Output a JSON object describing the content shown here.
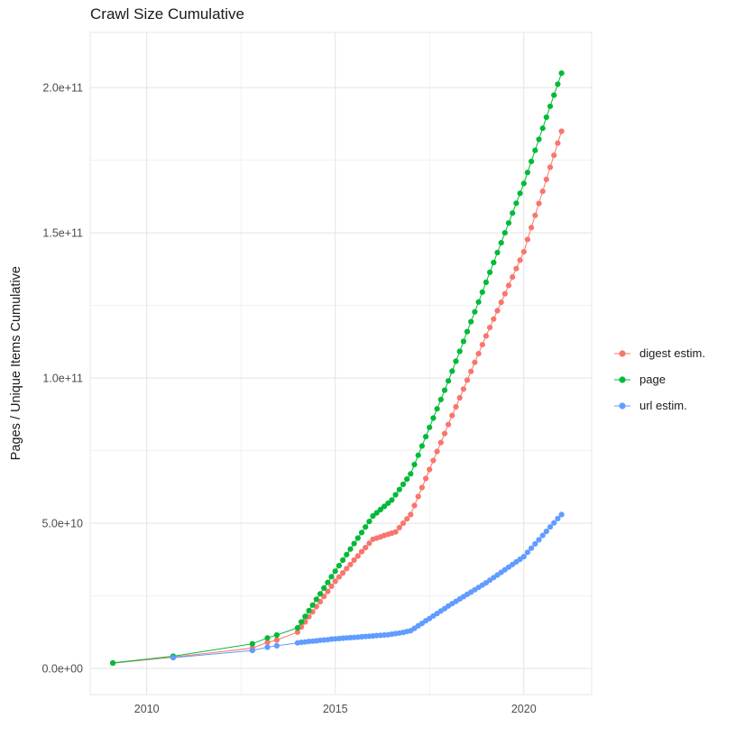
{
  "chart_data": {
    "type": "scatter",
    "title": "Crawl Size Cumulative",
    "xlabel": "",
    "ylabel": "Pages / Unique Items Cumulative",
    "legend_position": "right",
    "grid": true,
    "xlim": [
      2008.5,
      2021.8
    ],
    "ylim": [
      -9,
      219
    ],
    "y_values_scale": 1000000000,
    "x_ticks": [
      {
        "value": 2010,
        "label": "2010"
      },
      {
        "value": 2015,
        "label": "2015"
      },
      {
        "value": 2020,
        "label": "2020"
      }
    ],
    "y_ticks": [
      {
        "value": 0,
        "label": "0.0e+00"
      },
      {
        "value": 50,
        "label": "5.0e+10"
      },
      {
        "value": 100,
        "label": "1.0e+11"
      },
      {
        "value": 150,
        "label": "1.5e+11"
      },
      {
        "value": 200,
        "label": "2.0e+11"
      }
    ],
    "x_minor_ticks": [
      2012.5,
      2017.5
    ],
    "y_minor_ticks": [
      25,
      75,
      125,
      175
    ],
    "series": [
      {
        "id": "digest-estim",
        "name": "digest estim.",
        "color": "#F8766D",
        "points": [
          [
            2009.1,
            1.8
          ],
          [
            2010.7,
            3.9
          ],
          [
            2012.8,
            7.0
          ],
          [
            2013.2,
            9.0
          ],
          [
            2013.45,
            9.8
          ],
          [
            2014.0,
            12.5
          ],
          [
            2014.1,
            14.3
          ],
          [
            2014.2,
            16.0
          ],
          [
            2014.3,
            17.8
          ],
          [
            2014.4,
            19.5
          ],
          [
            2014.5,
            21.3
          ],
          [
            2014.6,
            23.0
          ],
          [
            2014.7,
            24.8
          ],
          [
            2014.8,
            26.5
          ],
          [
            2014.9,
            28.3
          ],
          [
            2015.0,
            30.0
          ],
          [
            2015.1,
            31.5
          ],
          [
            2015.2,
            32.9
          ],
          [
            2015.3,
            34.4
          ],
          [
            2015.4,
            35.8
          ],
          [
            2015.5,
            37.3
          ],
          [
            2015.6,
            38.7
          ],
          [
            2015.7,
            40.2
          ],
          [
            2015.8,
            41.6
          ],
          [
            2015.9,
            43.1
          ],
          [
            2016.0,
            44.5
          ],
          [
            2016.1,
            44.9
          ],
          [
            2016.2,
            45.3
          ],
          [
            2016.3,
            45.8
          ],
          [
            2016.4,
            46.2
          ],
          [
            2016.5,
            46.6
          ],
          [
            2016.6,
            47.0
          ],
          [
            2016.7,
            48.5
          ],
          [
            2016.8,
            50.0
          ],
          [
            2016.9,
            51.5
          ],
          [
            2017.0,
            53.0
          ],
          [
            2017.1,
            56.1
          ],
          [
            2017.2,
            59.2
          ],
          [
            2017.3,
            62.3
          ],
          [
            2017.4,
            65.4
          ],
          [
            2017.5,
            68.5
          ],
          [
            2017.6,
            71.6
          ],
          [
            2017.7,
            74.7
          ],
          [
            2017.8,
            77.8
          ],
          [
            2017.9,
            80.9
          ],
          [
            2018.0,
            84.0
          ],
          [
            2018.1,
            87.1
          ],
          [
            2018.2,
            90.1
          ],
          [
            2018.3,
            93.2
          ],
          [
            2018.4,
            96.2
          ],
          [
            2018.5,
            99.3
          ],
          [
            2018.6,
            102.3
          ],
          [
            2018.7,
            105.4
          ],
          [
            2018.8,
            108.4
          ],
          [
            2018.9,
            111.5
          ],
          [
            2019.0,
            114.5
          ],
          [
            2019.1,
            117.4
          ],
          [
            2019.2,
            120.3
          ],
          [
            2019.3,
            123.2
          ],
          [
            2019.4,
            126.1
          ],
          [
            2019.5,
            129.0
          ],
          [
            2019.6,
            131.9
          ],
          [
            2019.7,
            134.8
          ],
          [
            2019.8,
            137.7
          ],
          [
            2019.9,
            140.6
          ],
          [
            2020.0,
            143.5
          ],
          [
            2020.1,
            147.7
          ],
          [
            2020.2,
            151.8
          ],
          [
            2020.3,
            156.0
          ],
          [
            2020.4,
            160.1
          ],
          [
            2020.5,
            164.3
          ],
          [
            2020.6,
            168.4
          ],
          [
            2020.7,
            172.6
          ],
          [
            2020.8,
            176.7
          ],
          [
            2020.9,
            180.9
          ],
          [
            2021.0,
            185.0
          ]
        ]
      },
      {
        "id": "page",
        "name": "page",
        "color": "#00BA38",
        "points": [
          [
            2009.1,
            1.9
          ],
          [
            2010.7,
            4.2
          ],
          [
            2012.8,
            8.5
          ],
          [
            2013.2,
            10.5
          ],
          [
            2013.45,
            11.5
          ],
          [
            2014.0,
            14.0
          ],
          [
            2014.1,
            16.0
          ],
          [
            2014.2,
            17.9
          ],
          [
            2014.3,
            19.9
          ],
          [
            2014.4,
            21.8
          ],
          [
            2014.5,
            23.8
          ],
          [
            2014.6,
            25.7
          ],
          [
            2014.7,
            27.7
          ],
          [
            2014.8,
            29.6
          ],
          [
            2014.9,
            31.6
          ],
          [
            2015.0,
            33.5
          ],
          [
            2015.1,
            35.4
          ],
          [
            2015.2,
            37.3
          ],
          [
            2015.3,
            39.2
          ],
          [
            2015.4,
            41.1
          ],
          [
            2015.5,
            43.0
          ],
          [
            2015.6,
            44.9
          ],
          [
            2015.7,
            46.8
          ],
          [
            2015.8,
            48.7
          ],
          [
            2015.9,
            50.6
          ],
          [
            2016.0,
            52.5
          ],
          [
            2016.1,
            53.6
          ],
          [
            2016.2,
            54.7
          ],
          [
            2016.3,
            55.8
          ],
          [
            2016.4,
            56.9
          ],
          [
            2016.5,
            58.0
          ],
          [
            2016.6,
            59.8
          ],
          [
            2016.7,
            61.6
          ],
          [
            2016.8,
            63.4
          ],
          [
            2016.9,
            65.2
          ],
          [
            2017.0,
            67.0
          ],
          [
            2017.1,
            70.2
          ],
          [
            2017.2,
            73.4
          ],
          [
            2017.3,
            76.6
          ],
          [
            2017.4,
            79.8
          ],
          [
            2017.5,
            83.0
          ],
          [
            2017.6,
            86.2
          ],
          [
            2017.7,
            89.4
          ],
          [
            2017.8,
            92.6
          ],
          [
            2017.9,
            95.8
          ],
          [
            2018.0,
            99.0
          ],
          [
            2018.1,
            102.4
          ],
          [
            2018.2,
            105.8
          ],
          [
            2018.3,
            109.2
          ],
          [
            2018.4,
            112.6
          ],
          [
            2018.5,
            116.0
          ],
          [
            2018.6,
            119.4
          ],
          [
            2018.7,
            122.8
          ],
          [
            2018.8,
            126.2
          ],
          [
            2018.9,
            129.6
          ],
          [
            2019.0,
            133.0
          ],
          [
            2019.1,
            136.4
          ],
          [
            2019.2,
            139.8
          ],
          [
            2019.3,
            143.2
          ],
          [
            2019.4,
            146.6
          ],
          [
            2019.5,
            150.0
          ],
          [
            2019.6,
            153.4
          ],
          [
            2019.7,
            156.8
          ],
          [
            2019.8,
            160.2
          ],
          [
            2019.9,
            163.6
          ],
          [
            2020.0,
            167.0
          ],
          [
            2020.1,
            170.8
          ],
          [
            2020.2,
            174.6
          ],
          [
            2020.3,
            178.4
          ],
          [
            2020.4,
            182.2
          ],
          [
            2020.5,
            186.0
          ],
          [
            2020.6,
            189.8
          ],
          [
            2020.7,
            193.6
          ],
          [
            2020.8,
            197.4
          ],
          [
            2020.9,
            201.2
          ],
          [
            2021.0,
            205.0
          ]
        ]
      },
      {
        "id": "url-estim",
        "name": "url estim.",
        "color": "#619CFF",
        "points": [
          [
            2010.7,
            3.7
          ],
          [
            2012.8,
            6.2
          ],
          [
            2013.2,
            7.3
          ],
          [
            2013.45,
            7.8
          ],
          [
            2014.0,
            8.8
          ],
          [
            2014.1,
            9.0
          ],
          [
            2014.2,
            9.1
          ],
          [
            2014.3,
            9.3
          ],
          [
            2014.4,
            9.4
          ],
          [
            2014.5,
            9.5
          ],
          [
            2014.6,
            9.7
          ],
          [
            2014.7,
            9.8
          ],
          [
            2014.8,
            9.9
          ],
          [
            2014.9,
            10.1
          ],
          [
            2015.0,
            10.2
          ],
          [
            2015.1,
            10.3
          ],
          [
            2015.2,
            10.4
          ],
          [
            2015.3,
            10.5
          ],
          [
            2015.4,
            10.6
          ],
          [
            2015.5,
            10.7
          ],
          [
            2015.6,
            10.8
          ],
          [
            2015.7,
            10.9
          ],
          [
            2015.8,
            11.0
          ],
          [
            2015.9,
            11.1
          ],
          [
            2016.0,
            11.2
          ],
          [
            2016.1,
            11.3
          ],
          [
            2016.2,
            11.4
          ],
          [
            2016.3,
            11.5
          ],
          [
            2016.4,
            11.6
          ],
          [
            2016.5,
            11.8
          ],
          [
            2016.6,
            12.0
          ],
          [
            2016.7,
            12.2
          ],
          [
            2016.8,
            12.4
          ],
          [
            2016.9,
            12.7
          ],
          [
            2017.0,
            13.0
          ],
          [
            2017.1,
            13.8
          ],
          [
            2017.2,
            14.7
          ],
          [
            2017.3,
            15.5
          ],
          [
            2017.4,
            16.4
          ],
          [
            2017.5,
            17.2
          ],
          [
            2017.6,
            18.1
          ],
          [
            2017.7,
            18.9
          ],
          [
            2017.8,
            19.8
          ],
          [
            2017.9,
            20.6
          ],
          [
            2018.0,
            21.5
          ],
          [
            2018.1,
            22.3
          ],
          [
            2018.2,
            23.1
          ],
          [
            2018.3,
            23.9
          ],
          [
            2018.4,
            24.7
          ],
          [
            2018.5,
            25.5
          ],
          [
            2018.6,
            26.3
          ],
          [
            2018.7,
            27.1
          ],
          [
            2018.8,
            27.9
          ],
          [
            2018.9,
            28.7
          ],
          [
            2019.0,
            29.5
          ],
          [
            2019.1,
            30.4
          ],
          [
            2019.2,
            31.3
          ],
          [
            2019.3,
            32.2
          ],
          [
            2019.4,
            33.1
          ],
          [
            2019.5,
            34.0
          ],
          [
            2019.6,
            34.9
          ],
          [
            2019.7,
            35.8
          ],
          [
            2019.8,
            36.7
          ],
          [
            2019.9,
            37.6
          ],
          [
            2020.0,
            38.5
          ],
          [
            2020.1,
            40.0
          ],
          [
            2020.2,
            41.4
          ],
          [
            2020.3,
            42.9
          ],
          [
            2020.4,
            44.3
          ],
          [
            2020.5,
            45.8
          ],
          [
            2020.6,
            47.2
          ],
          [
            2020.7,
            48.7
          ],
          [
            2020.8,
            50.1
          ],
          [
            2020.9,
            51.6
          ],
          [
            2021.0,
            53.0
          ]
        ]
      }
    ]
  },
  "theme": {
    "background": "#ffffff",
    "grid_major": "#e3e3e3",
    "grid_minor": "#f1f1f1",
    "panel_border": "#e7e7e7",
    "tick_label_color": "#4d4d4d",
    "text_color": "#1a1a1a"
  }
}
